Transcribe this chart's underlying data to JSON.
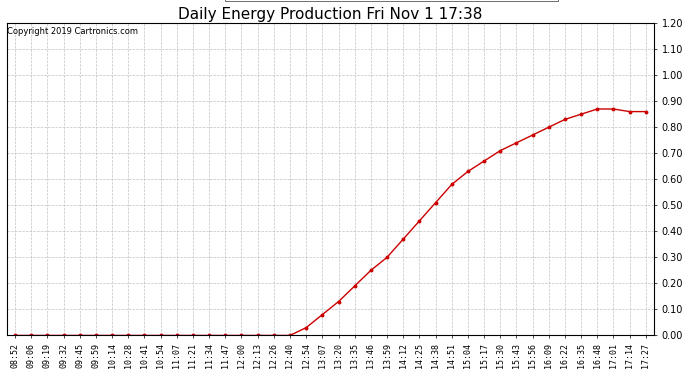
{
  "title": "Daily Energy Production Fri Nov 1 17:38",
  "copyright": "Copyright 2019 Cartronics.com",
  "legend_offpeak_color": "#0000bb",
  "legend_onpeak_color": "#cc0000",
  "line_color": "#cc0000",
  "background_color": "#ffffff",
  "plot_bg_color": "#ffffff",
  "grid_color": "#bbbbbb",
  "ylim": [
    0.0,
    1.2
  ],
  "yticks": [
    0.0,
    0.1,
    0.2,
    0.3,
    0.4,
    0.5,
    0.6,
    0.7,
    0.8,
    0.9,
    1.0,
    1.1,
    1.2
  ],
  "xtick_labels": [
    "08:52",
    "09:06",
    "09:19",
    "09:32",
    "09:45",
    "09:59",
    "10:14",
    "10:28",
    "10:41",
    "10:54",
    "11:07",
    "11:21",
    "11:34",
    "11:47",
    "12:00",
    "12:13",
    "12:26",
    "12:40",
    "12:54",
    "13:07",
    "13:20",
    "13:35",
    "13:46",
    "13:59",
    "14:12",
    "14:25",
    "14:38",
    "14:51",
    "15:04",
    "15:17",
    "15:30",
    "15:43",
    "15:56",
    "16:09",
    "16:22",
    "16:35",
    "16:48",
    "17:01",
    "17:14",
    "17:27"
  ],
  "onpeak_y": [
    0.0,
    0.0,
    0.0,
    0.0,
    0.0,
    0.0,
    0.0,
    0.0,
    0.0,
    0.0,
    0.0,
    0.0,
    0.0,
    0.0,
    0.0,
    0.0,
    0.0,
    0.0,
    0.03,
    0.08,
    0.13,
    0.19,
    0.25,
    0.3,
    0.37,
    0.44,
    0.51,
    0.58,
    0.63,
    0.67,
    0.71,
    0.74,
    0.77,
    0.8,
    0.83,
    0.85,
    0.87,
    0.87,
    0.86,
    0.86
  ],
  "title_fontsize": 11,
  "copyright_fontsize": 6,
  "ytick_fontsize": 7,
  "xtick_fontsize": 6,
  "legend_fontsize": 6.5
}
